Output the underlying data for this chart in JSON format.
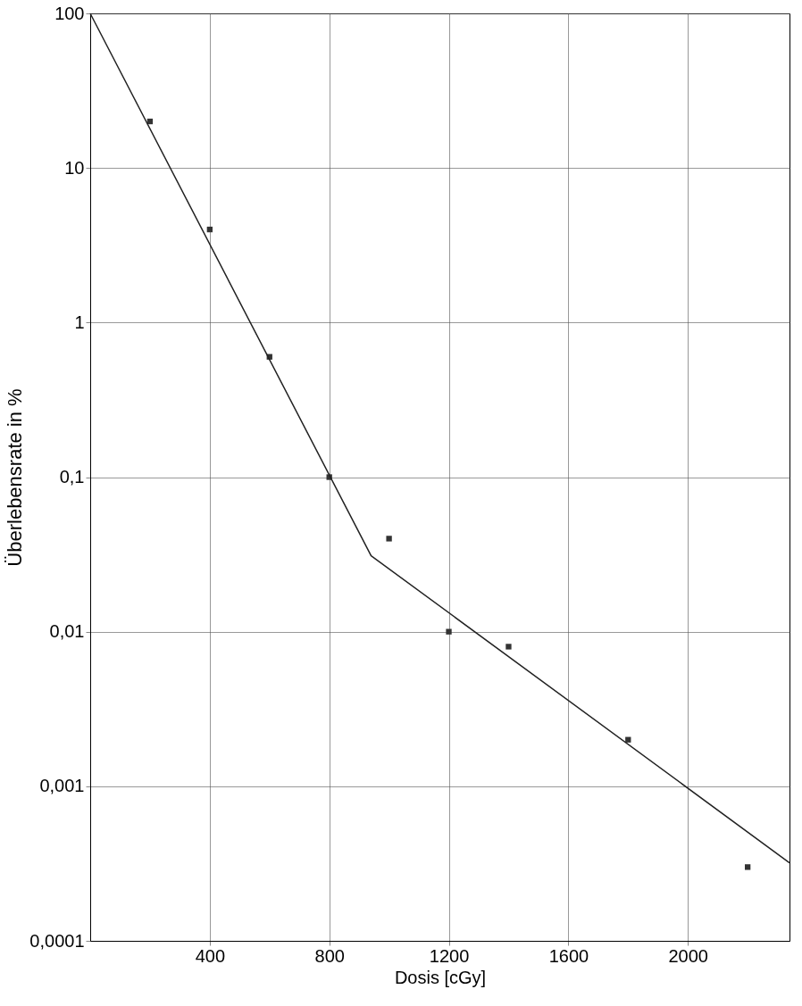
{
  "chart_data": {
    "type": "scatter",
    "xlabel": "Dosis [cGy]",
    "ylabel": "Überlebensrate in %",
    "log": "y",
    "grid": true,
    "xlim": [
      0,
      2340
    ],
    "xticks": [
      400,
      800,
      1200,
      1600,
      2000
    ],
    "ylim": [
      0.0001,
      100
    ],
    "yticks": [
      {
        "value": 0.0001,
        "label": "0,0001"
      },
      {
        "value": 0.001,
        "label": "0,001"
      },
      {
        "value": 0.01,
        "label": "0,01"
      },
      {
        "value": 0.1,
        "label": "0,1"
      },
      1,
      10,
      100
    ],
    "series": [
      {
        "marker": "square",
        "color": "#333333",
        "x": [
          200,
          400,
          600,
          800,
          1000,
          1200,
          1400,
          1800,
          2200
        ],
        "values": [
          20,
          4,
          0.6,
          0.1,
          0.04,
          0.01,
          0.008,
          0.002,
          0.0003
        ]
      },
      {
        "type": "line",
        "marker": "none",
        "color": "#222222",
        "x": [
          0,
          940,
          2340
        ],
        "values": [
          100,
          0.031,
          0.00032
        ]
      }
    ]
  }
}
